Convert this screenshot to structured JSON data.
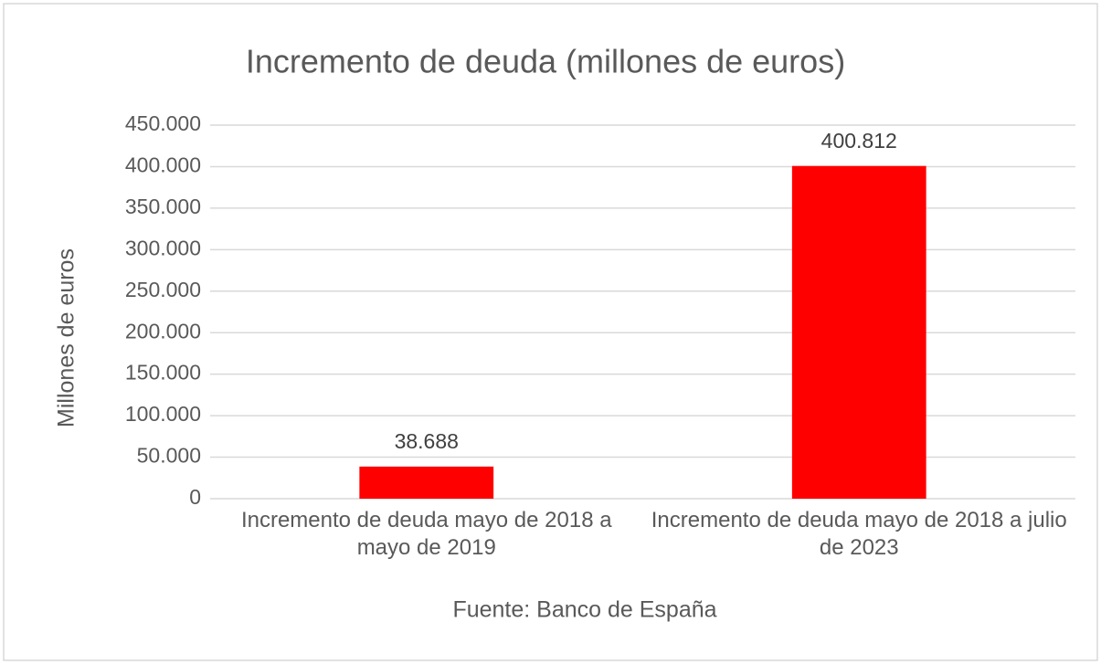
{
  "chart_data": {
    "type": "bar",
    "title": "Incremento de deuda (millones de euros)",
    "ylabel": "Millones de euros",
    "xlabel": "Fuente: Banco de España",
    "categories": [
      "Incremento de deuda mayo de 2018 a mayo de 2019",
      "Incremento de deuda mayo de 2018 a julio de 2023"
    ],
    "values": [
      38688,
      400812
    ],
    "value_labels": [
      "38.688",
      "400.812"
    ],
    "color": "#ff0000",
    "ylim": [
      0,
      450000
    ],
    "yticks": [
      0,
      {
        "value": 50000,
        "label": "50.000"
      },
      {
        "value": 100000,
        "label": "100.000"
      },
      {
        "value": 150000,
        "label": "150.000"
      },
      {
        "value": 200000,
        "label": "200.000"
      },
      {
        "value": 250000,
        "label": "250.000"
      },
      {
        "value": 300000,
        "label": "300.000"
      },
      {
        "value": 350000,
        "label": "350.000"
      },
      {
        "value": 400000,
        "label": "400.000"
      },
      {
        "value": 450000,
        "label": "450.000"
      }
    ],
    "grid": true
  }
}
